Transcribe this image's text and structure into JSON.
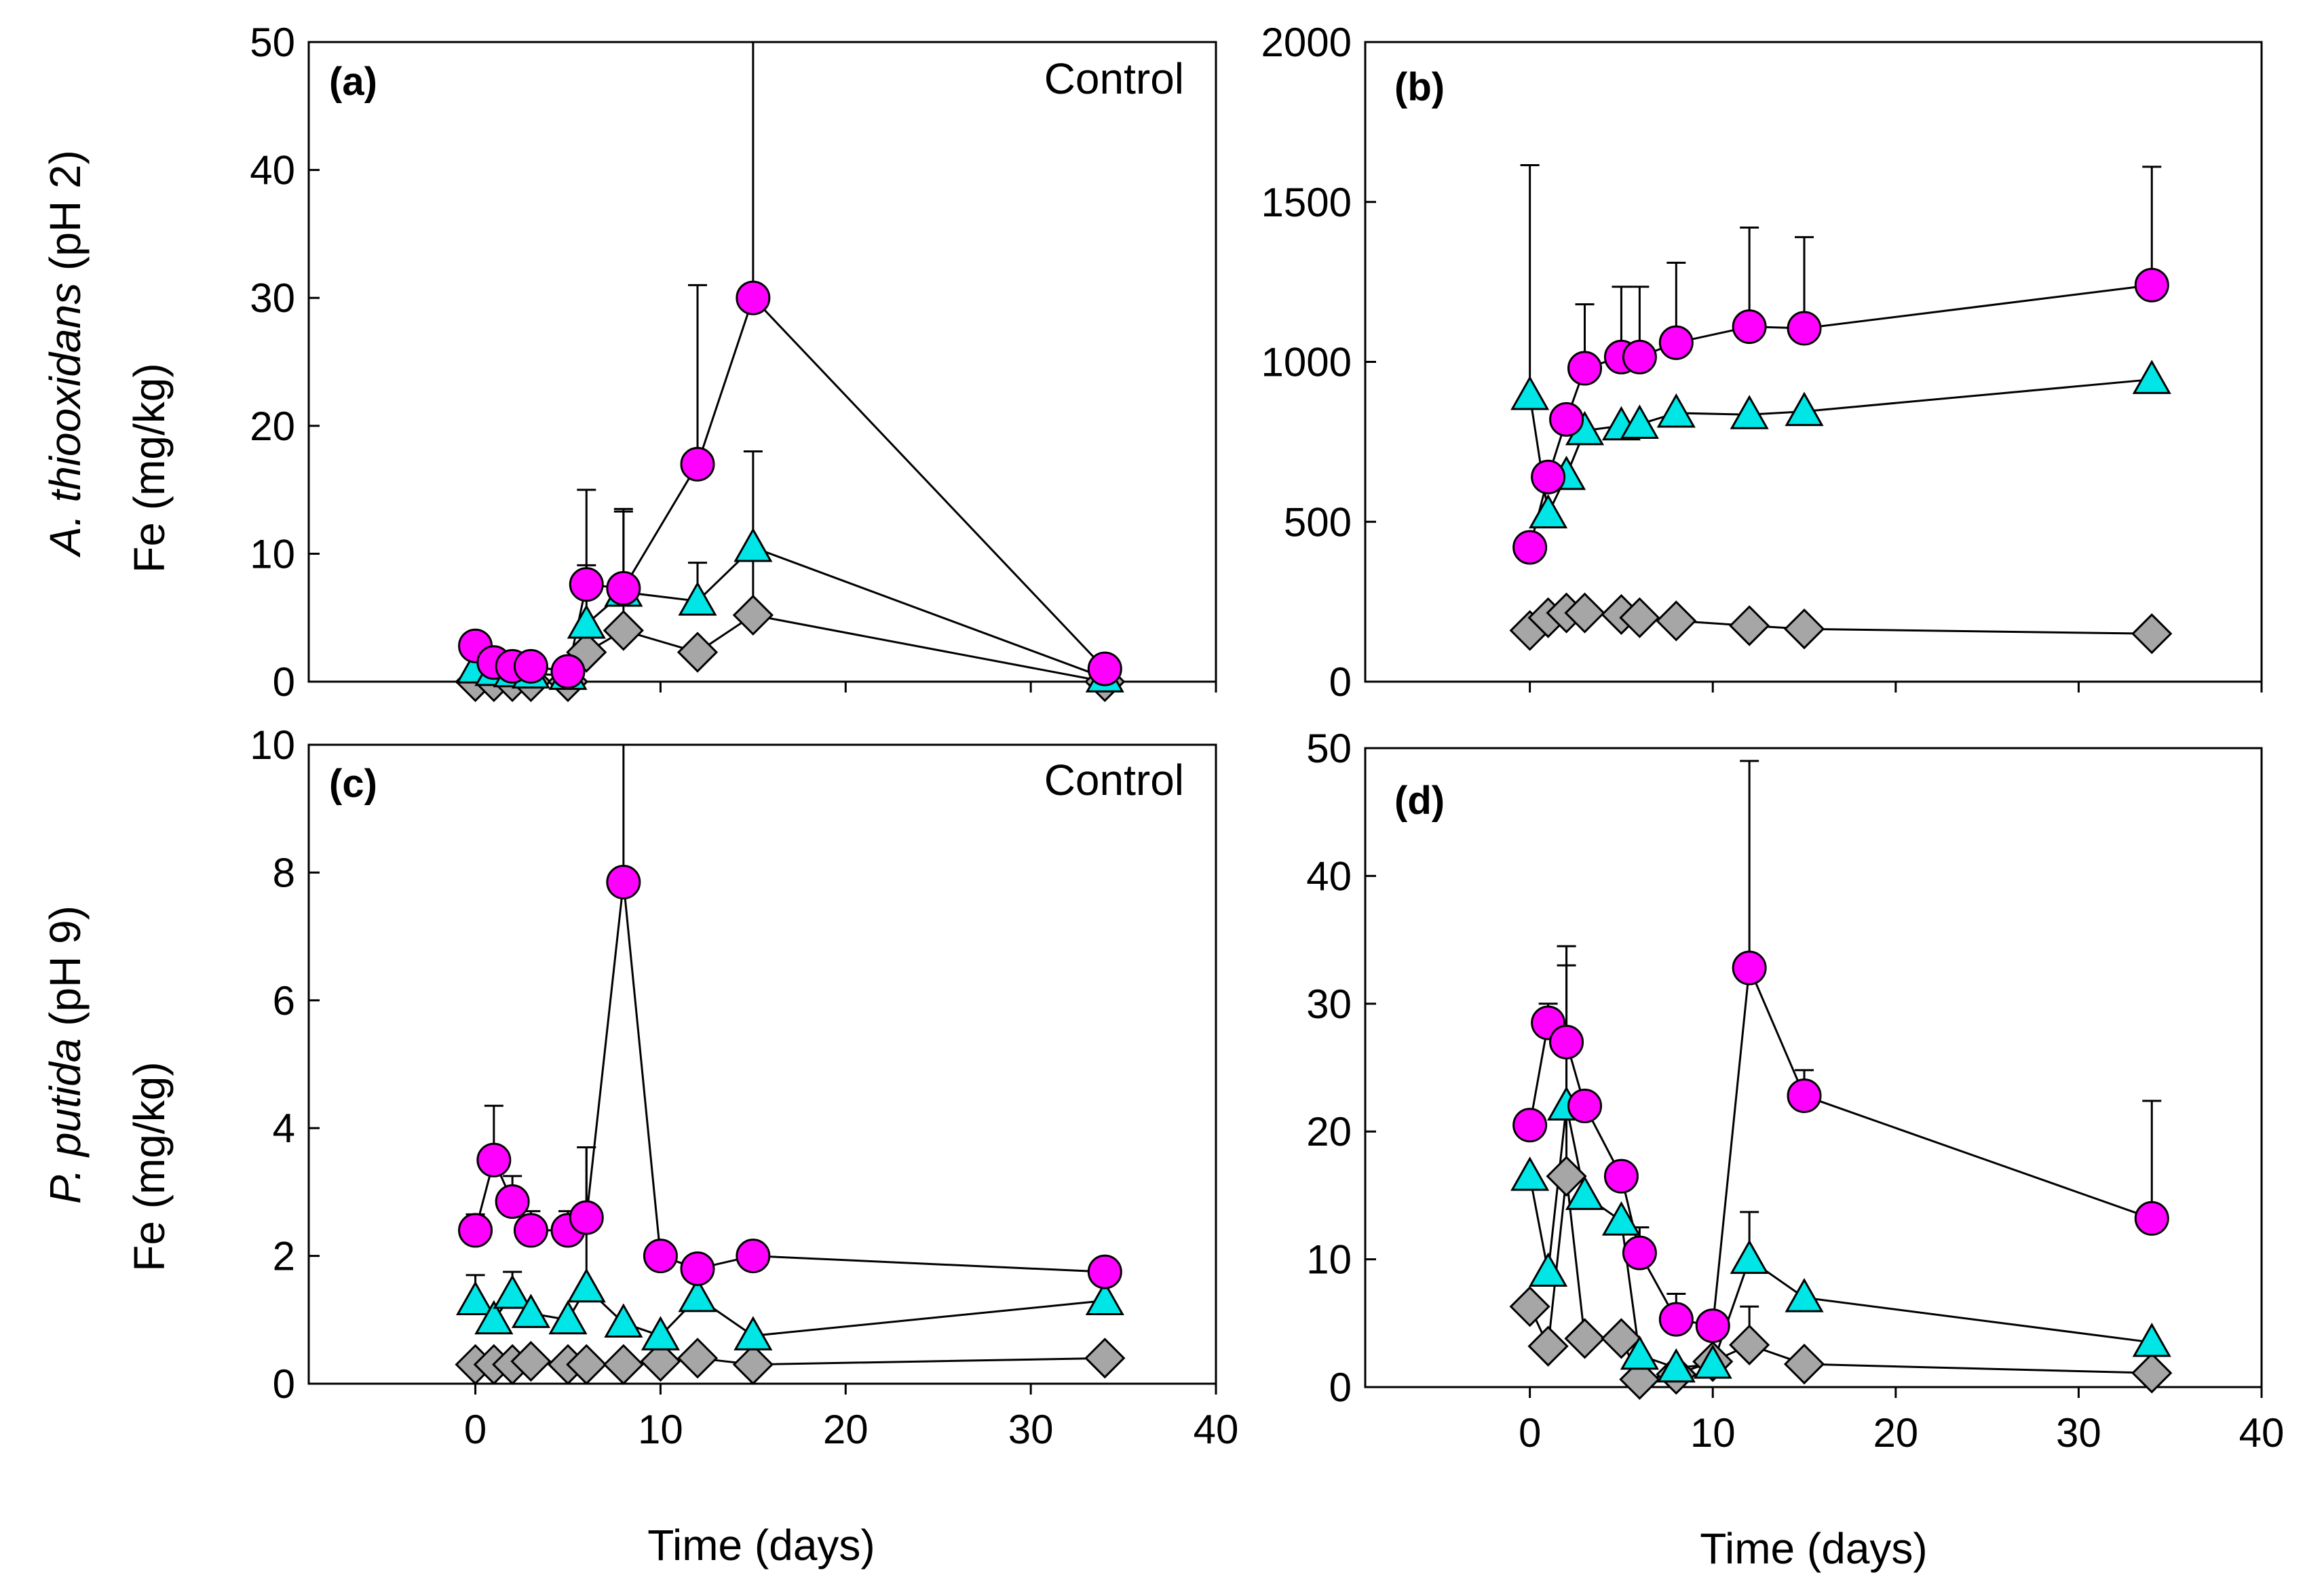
{
  "figure": {
    "row_labels": [
      {
        "italic": "A. thiooxidans",
        "rest": " (pH 2)"
      },
      {
        "italic": "P. putida",
        "rest": " (pH 9)"
      }
    ],
    "ylabel": "Fe (mg/kg)",
    "xlabel": "Time (days)"
  },
  "chart_data": [
    {
      "type": "scatter",
      "panel_label": "(a)",
      "annotation": "Control",
      "xlim": [
        -9,
        40
      ],
      "ylim": [
        0,
        50
      ],
      "xticks": [
        0,
        10,
        20,
        30,
        40
      ],
      "yticks": [
        0,
        10,
        20,
        30,
        40,
        50
      ],
      "show_xtick_labels": false,
      "series": [
        {
          "name": "circle",
          "marker": "circle",
          "color": "#ff00ff",
          "x": [
            0,
            1,
            2,
            3,
            5,
            6,
            8,
            12,
            15,
            34
          ],
          "y": [
            2.8,
            1.5,
            1.2,
            1.2,
            0.8,
            7.6,
            7.3,
            17.0,
            30.0,
            1.0
          ],
          "err": [
            0,
            0,
            0,
            0,
            0,
            1.5,
            6.0,
            14.0,
            21.0,
            0
          ]
        },
        {
          "name": "triangle",
          "marker": "triangle",
          "color": "#00e5e5",
          "x": [
            0,
            1,
            2,
            3,
            5,
            6,
            8,
            12,
            15,
            34
          ],
          "y": [
            1.0,
            0.8,
            0.7,
            0.6,
            0.5,
            4.5,
            7.0,
            6.3,
            10.5,
            0.3
          ],
          "err": [
            0,
            0,
            0,
            0,
            0,
            10.5,
            6.5,
            3.0,
            7.5,
            0
          ]
        },
        {
          "name": "diamond",
          "marker": "diamond",
          "color": "#a6a6a6",
          "x": [
            0,
            1,
            2,
            3,
            5,
            6,
            8,
            12,
            15,
            34
          ],
          "y": [
            0,
            0,
            0,
            0,
            0,
            2.3,
            4.0,
            2.3,
            5.2,
            0
          ],
          "err": [
            0,
            0,
            0,
            0,
            0,
            1.2,
            3.0,
            0,
            4.6,
            0
          ]
        }
      ]
    },
    {
      "type": "scatter",
      "panel_label": "(b)",
      "annotation": "",
      "xlim": [
        -9,
        40
      ],
      "ylim": [
        0,
        2000
      ],
      "xticks": [
        0,
        10,
        20,
        30,
        40
      ],
      "yticks": [
        0,
        500,
        1000,
        1500,
        2000
      ],
      "show_xtick_labels": false,
      "series": [
        {
          "name": "circle",
          "marker": "circle",
          "color": "#ff00ff",
          "x": [
            0,
            1,
            2,
            3,
            5,
            6,
            8,
            12,
            15,
            34
          ],
          "y": [
            420,
            640,
            820,
            980,
            1015,
            1015,
            1060,
            1110,
            1105,
            1240
          ],
          "err": [
            0,
            0,
            0,
            200,
            220,
            220,
            250,
            310,
            285,
            370
          ]
        },
        {
          "name": "triangle",
          "marker": "triangle",
          "color": "#00e5e5",
          "x": [
            0,
            1,
            2,
            3,
            5,
            6,
            8,
            12,
            15,
            34
          ],
          "y": [
            895,
            525,
            645,
            785,
            800,
            805,
            840,
            835,
            845,
            945
          ],
          "err": [
            720,
            0,
            0,
            0,
            0,
            0,
            0,
            0,
            0,
            0
          ]
        },
        {
          "name": "diamond",
          "marker": "diamond",
          "color": "#a6a6a6",
          "x": [
            0,
            1,
            2,
            3,
            5,
            6,
            8,
            12,
            15,
            34
          ],
          "y": [
            160,
            200,
            215,
            215,
            210,
            200,
            190,
            175,
            165,
            150
          ],
          "err": [
            0,
            0,
            0,
            0,
            0,
            0,
            0,
            0,
            0,
            0
          ]
        }
      ]
    },
    {
      "type": "scatter",
      "panel_label": "(c)",
      "annotation": "Control",
      "xlim": [
        -9,
        40
      ],
      "ylim": [
        0,
        10
      ],
      "xticks": [
        0,
        10,
        20,
        30,
        40
      ],
      "yticks": [
        0,
        2,
        4,
        6,
        8,
        10
      ],
      "show_xtick_labels": true,
      "series": [
        {
          "name": "circle",
          "marker": "circle",
          "color": "#ff00ff",
          "x": [
            0,
            1,
            2,
            3,
            5,
            6,
            8,
            10,
            12,
            15,
            34
          ],
          "y": [
            2.4,
            3.5,
            2.85,
            2.4,
            2.4,
            2.6,
            7.85,
            2.0,
            1.8,
            2.0,
            1.75
          ],
          "err": [
            0.25,
            0.85,
            0.4,
            0.3,
            0.3,
            1.1,
            2.2,
            0,
            0,
            0,
            0
          ]
        },
        {
          "name": "triangle",
          "marker": "triangle",
          "color": "#00e5e5",
          "x": [
            0,
            1,
            2,
            3,
            5,
            6,
            8,
            10,
            12,
            15,
            34
          ],
          "y": [
            1.3,
            1.0,
            1.4,
            1.1,
            1.0,
            1.5,
            0.95,
            0.75,
            1.35,
            0.75,
            1.3
          ],
          "err": [
            0.4,
            0,
            0.35,
            0,
            0,
            2.2,
            0,
            0,
            0,
            0,
            0.6
          ]
        },
        {
          "name": "diamond",
          "marker": "diamond",
          "color": "#a6a6a6",
          "x": [
            0,
            1,
            2,
            3,
            5,
            6,
            8,
            10,
            12,
            15,
            34
          ],
          "y": [
            0.3,
            0.3,
            0.3,
            0.35,
            0.3,
            0.3,
            0.3,
            0.35,
            0.4,
            0.3,
            0.4
          ],
          "err": [
            0,
            0,
            0,
            0,
            0,
            0,
            0,
            0,
            0,
            0,
            0
          ]
        }
      ]
    },
    {
      "type": "scatter",
      "panel_label": "(d)",
      "annotation": "",
      "xlim": [
        -9,
        40
      ],
      "ylim": [
        0,
        50
      ],
      "xticks": [
        0,
        10,
        20,
        30,
        40
      ],
      "yticks": [
        0,
        10,
        20,
        30,
        40,
        50
      ],
      "show_xtick_labels": true,
      "series": [
        {
          "name": "circle",
          "marker": "circle",
          "color": "#ff00ff",
          "x": [
            0,
            1,
            2,
            3,
            5,
            6,
            8,
            10,
            12,
            15,
            34
          ],
          "y": [
            20.5,
            28.5,
            27.0,
            22.0,
            16.5,
            10.5,
            5.3,
            4.8,
            32.8,
            22.8,
            13.2
          ],
          "err": [
            0,
            1.5,
            7.5,
            0,
            0,
            2.0,
            2.0,
            0,
            16.2,
            2.0,
            9.2
          ]
        },
        {
          "name": "triangle",
          "marker": "triangle",
          "color": "#00e5e5",
          "x": [
            0,
            1,
            2,
            3,
            5,
            6,
            8,
            10,
            12,
            15,
            34
          ],
          "y": [
            16.5,
            9.0,
            22.0,
            15.0,
            13.0,
            2.5,
            1.5,
            1.8,
            10.0,
            7.0,
            3.5
          ],
          "err": [
            0,
            0,
            12.5,
            0,
            0,
            0,
            0,
            0,
            3.7,
            0,
            0
          ]
        },
        {
          "name": "diamond",
          "marker": "diamond",
          "color": "#a6a6a6",
          "x": [
            0,
            1,
            2,
            3,
            5,
            6,
            8,
            10,
            12,
            15,
            34
          ],
          "y": [
            6.3,
            3.2,
            16.5,
            3.8,
            3.8,
            0.6,
            1.0,
            2.0,
            3.3,
            1.8,
            1.1
          ],
          "err": [
            0,
            0,
            16.5,
            0,
            0,
            0,
            0,
            0,
            3.0,
            0,
            0
          ]
        }
      ]
    }
  ]
}
